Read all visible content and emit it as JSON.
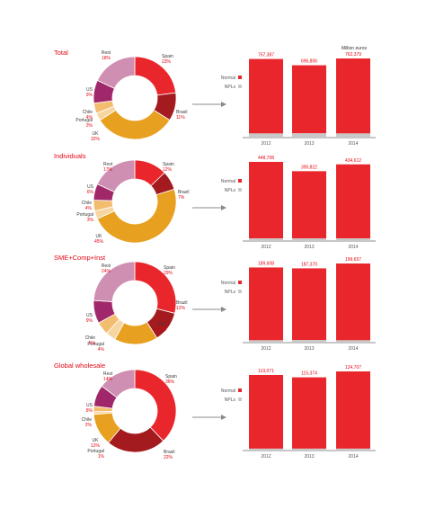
{
  "unit_label": "Million euros",
  "legend": {
    "normal": "Normal",
    "npls": "NPLs"
  },
  "colors": {
    "accent": "#e30613",
    "bar_normal": "#e8262b",
    "bar_npl": "#c8c8c8",
    "Spain": "#e8262b",
    "Brazil": "#a31a1f",
    "UK": "#e8a020",
    "Portugal": "#f7d5a0",
    "Chile": "#f2bd6e",
    "US": "#a0286a",
    "Rest": "#cf8fb2"
  },
  "chart_data": [
    {
      "type": "donut+bar",
      "title": "Total",
      "pie": [
        {
          "name": "Spain",
          "pct": "23%",
          "value": 23
        },
        {
          "name": "Brasil",
          "pct": "11%",
          "value": 11
        },
        {
          "name": "UK",
          "pct": "32%",
          "value": 32
        },
        {
          "name": "Portugal",
          "pct": "3%",
          "value": 3
        },
        {
          "name": "Chile",
          "pct": "4%",
          "value": 4
        },
        {
          "name": "US",
          "pct": "9%",
          "value": 9
        },
        {
          "name": "Rest",
          "pct": "18%",
          "value": 18
        }
      ],
      "categories": [
        "2012",
        "2013",
        "2014"
      ],
      "values": [
        757387,
        696806,
        762379
      ],
      "value_labels": [
        "757,387",
        "696,806",
        "762,379"
      ],
      "npl_values": [
        40000,
        41000,
        40000
      ]
    },
    {
      "type": "donut+bar",
      "title": "Individuals",
      "pie": [
        {
          "name": "Spain",
          "pct": "12%",
          "value": 12
        },
        {
          "name": "Brazil",
          "pct": "7%",
          "value": 7
        },
        {
          "name": "UK",
          "pct": "45%",
          "value": 45
        },
        {
          "name": "Portugal",
          "pct": "3%",
          "value": 3
        },
        {
          "name": "Chile",
          "pct": "4%",
          "value": 4
        },
        {
          "name": "US",
          "pct": "6%",
          "value": 6
        },
        {
          "name": "Rest",
          "pct": "17%",
          "value": 17
        }
      ],
      "categories": [
        "2012",
        "2013",
        "2014"
      ],
      "values": [
        448708,
        395822,
        434612
      ],
      "value_labels": [
        "448,708",
        "395,822",
        "434,612"
      ],
      "npl_values": [
        15000,
        15000,
        15000
      ]
    },
    {
      "type": "donut+bar",
      "title": "SME+Comp+Inst",
      "pie": [
        {
          "name": "Spain",
          "pct": "29%",
          "value": 29
        },
        {
          "name": "Brazil",
          "pct": "12%",
          "value": 12
        },
        {
          "name": "UK",
          "pct": "17%",
          "value": 17
        },
        {
          "name": "Portugal",
          "pct": "4%",
          "value": 4
        },
        {
          "name": "Chile",
          "pct": "5%",
          "value": 5
        },
        {
          "name": "US",
          "pct": "9%",
          "value": 9
        },
        {
          "name": "Rest",
          "pct": "24%",
          "value": 24
        }
      ],
      "categories": [
        "2012",
        "2013",
        "2014"
      ],
      "values": [
        189608,
        187370,
        199657
      ],
      "value_labels": [
        "189,608",
        "187,370",
        "199,657"
      ],
      "npl_values": [
        6000,
        6500,
        6000
      ]
    },
    {
      "type": "donut+bar",
      "title": "Global wholesale",
      "pie": [
        {
          "name": "Spain",
          "pct": "36%",
          "value": 36
        },
        {
          "name": "Brasil",
          "pct": "22%",
          "value": 22
        },
        {
          "name": "UK",
          "pct": "12%",
          "value": 12
        },
        {
          "name": "Portugal",
          "pct": "1%",
          "value": 1
        },
        {
          "name": "Chile",
          "pct": "2%",
          "value": 2
        },
        {
          "name": "US",
          "pct": "8%",
          "value": 8
        },
        {
          "name": "Rest",
          "pct": "14%",
          "value": 14
        }
      ],
      "categories": [
        "2012",
        "2013",
        "2014"
      ],
      "values": [
        119071,
        115374,
        124707
      ],
      "value_labels": [
        "119,071",
        "115,374",
        "124,707"
      ],
      "npl_values": [
        3000,
        3000,
        3000
      ]
    }
  ]
}
